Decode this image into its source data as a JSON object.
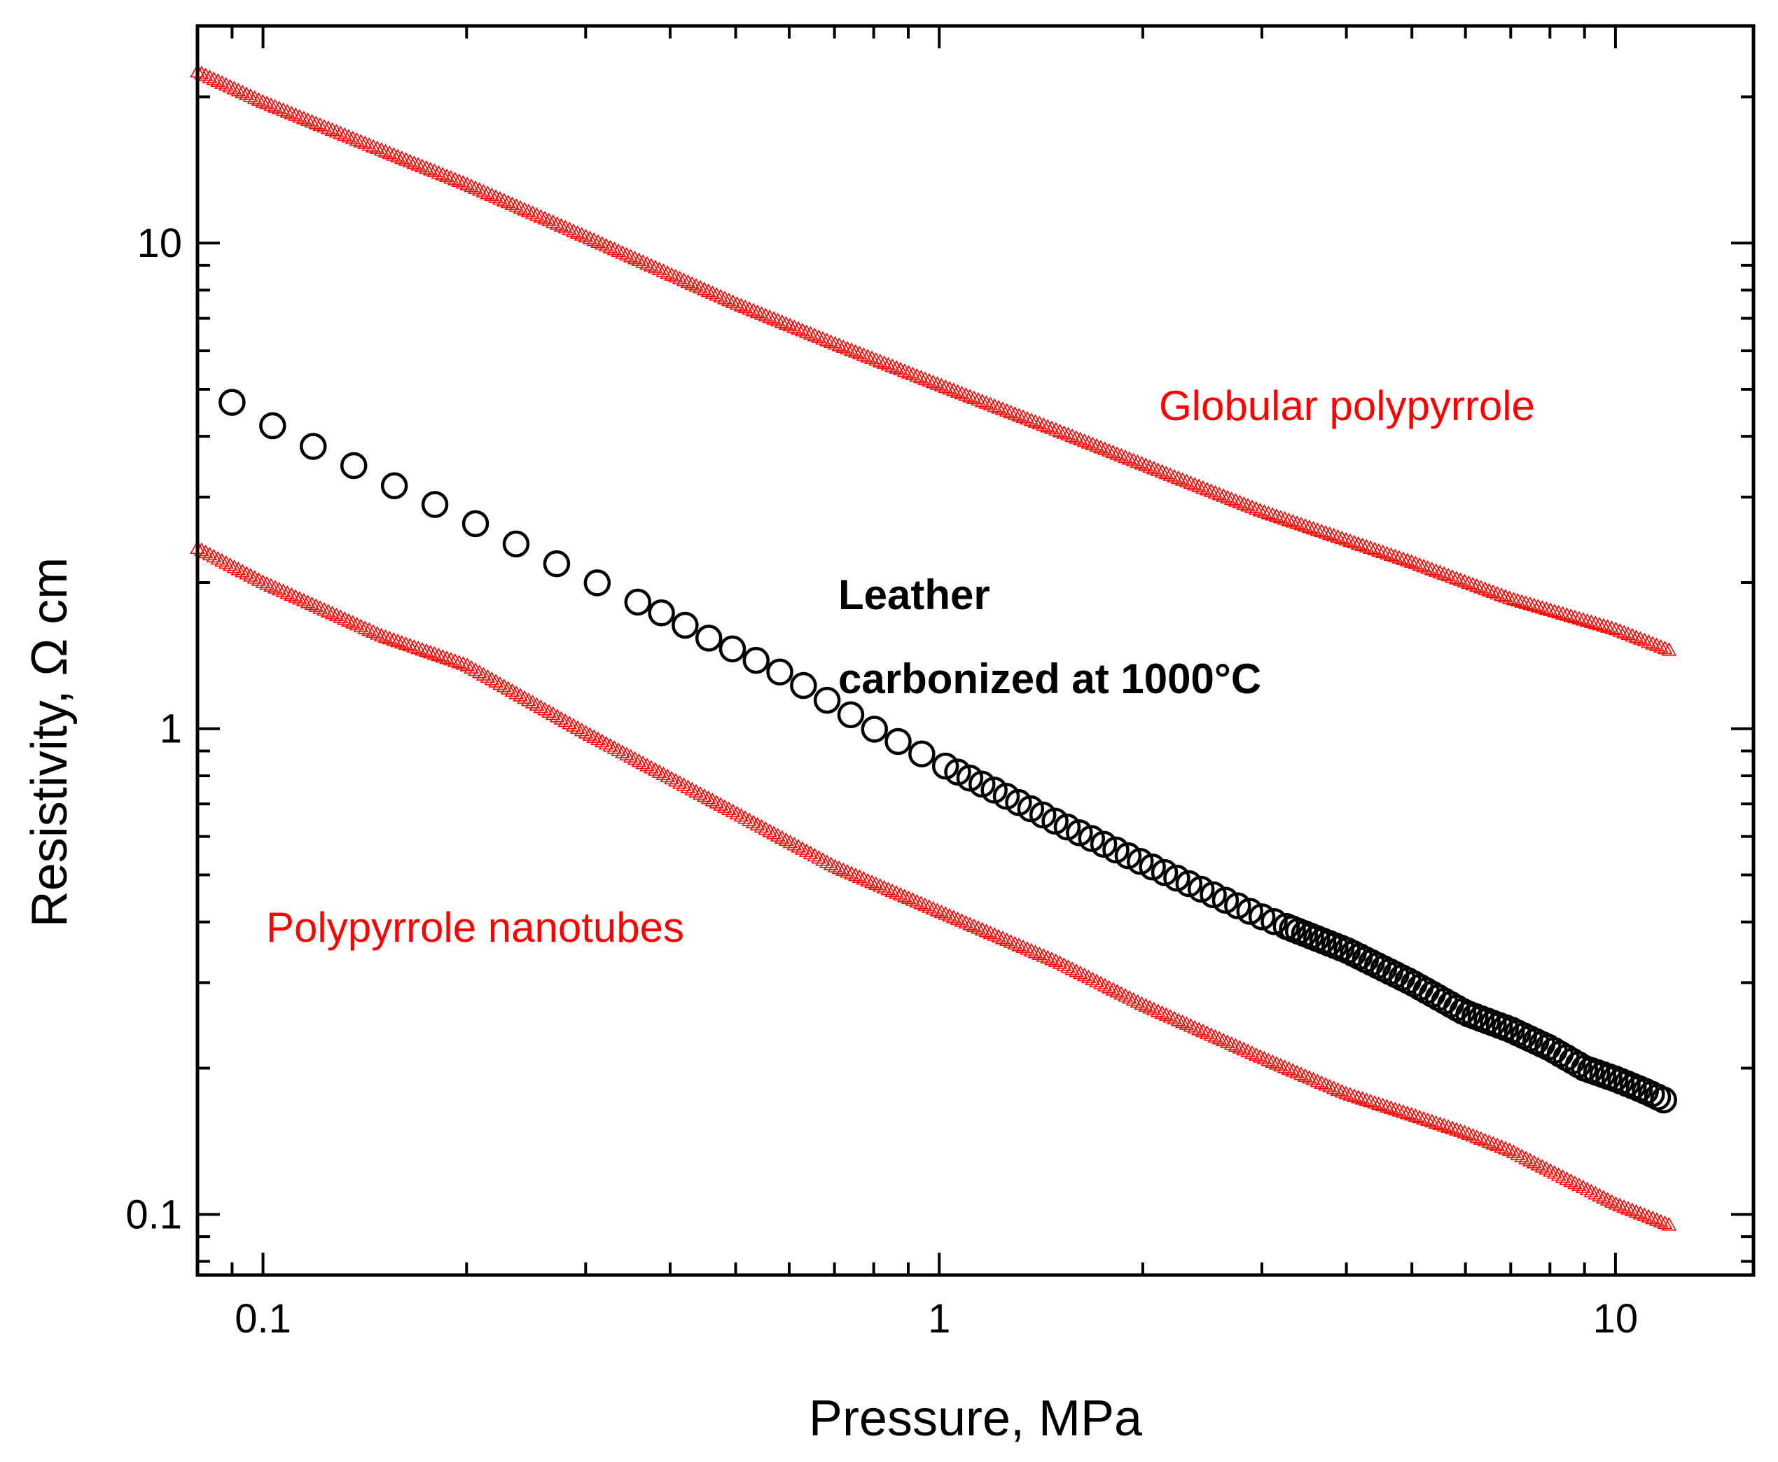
{
  "chart_data": {
    "type": "scatter",
    "title": "",
    "xlabel": "Pressure, MPa",
    "ylabel": "Resistivity, Ω cm",
    "xscale": "log",
    "yscale": "log",
    "xlim": [
      0.08,
      16
    ],
    "ylim": [
      0.075,
      28
    ],
    "x_ticks": [
      {
        "value": 0.1,
        "label": "0.1"
      },
      {
        "value": 1,
        "label": "1"
      },
      {
        "value": 10,
        "label": "10"
      }
    ],
    "y_ticks": [
      {
        "value": 0.1,
        "label": "0.1"
      },
      {
        "value": 1,
        "label": "1"
      },
      {
        "value": 10,
        "label": "10"
      }
    ],
    "series": [
      {
        "name": "Globular polypyrrole",
        "marker": "triangle-open",
        "color": "#ff0000",
        "x": [
          0.08,
          0.1,
          0.15,
          0.2,
          0.3,
          0.5,
          0.7,
          1,
          1.5,
          2,
          3,
          5,
          7,
          10,
          12
        ],
        "y": [
          22.5,
          19.5,
          15.5,
          13.2,
          10.3,
          7.5,
          6.2,
          5.1,
          4.1,
          3.5,
          2.8,
          2.2,
          1.85,
          1.6,
          1.45
        ]
      },
      {
        "name": "Leather carbonized at 1000°C",
        "marker": "circle-open",
        "color": "#000000",
        "x": [
          0.09,
          0.11,
          0.13,
          0.15,
          0.17,
          0.2,
          0.23,
          0.26,
          0.3,
          0.35,
          0.4,
          0.45,
          0.5,
          0.6,
          0.7,
          0.8,
          1,
          1.2,
          1.5,
          2,
          2.5,
          3,
          4,
          5,
          6,
          7,
          8,
          9,
          10,
          11,
          12
        ],
        "y": [
          4.7,
          4.0,
          3.6,
          3.25,
          3.0,
          2.7,
          2.45,
          2.25,
          2.05,
          1.85,
          1.7,
          1.55,
          1.45,
          1.28,
          1.12,
          1.0,
          0.85,
          0.75,
          0.64,
          0.53,
          0.46,
          0.41,
          0.35,
          0.3,
          0.26,
          0.24,
          0.22,
          0.2,
          0.19,
          0.18,
          0.17
        ]
      },
      {
        "name": "Polypyrrole nanotubes",
        "marker": "triangle-open",
        "color": "#ff0000",
        "x": [
          0.08,
          0.1,
          0.15,
          0.2,
          0.3,
          0.5,
          0.7,
          1,
          1.5,
          2,
          3,
          4,
          5,
          6,
          7,
          10,
          12
        ],
        "y": [
          2.35,
          2.0,
          1.55,
          1.35,
          0.98,
          0.67,
          0.52,
          0.42,
          0.33,
          0.27,
          0.21,
          0.177,
          0.16,
          0.147,
          0.135,
          0.105,
          0.095
        ]
      }
    ],
    "annotations": [
      {
        "text": "Globular polypyrrole",
        "color": "#ff0000",
        "bold": false
      },
      {
        "text": "Leather",
        "color": "#000000",
        "bold": true
      },
      {
        "text": "carbonized at 1000°C",
        "color": "#000000",
        "bold": true
      },
      {
        "text": "Polypyrrole nanotubes",
        "color": "#ff0000",
        "bold": false
      }
    ]
  }
}
